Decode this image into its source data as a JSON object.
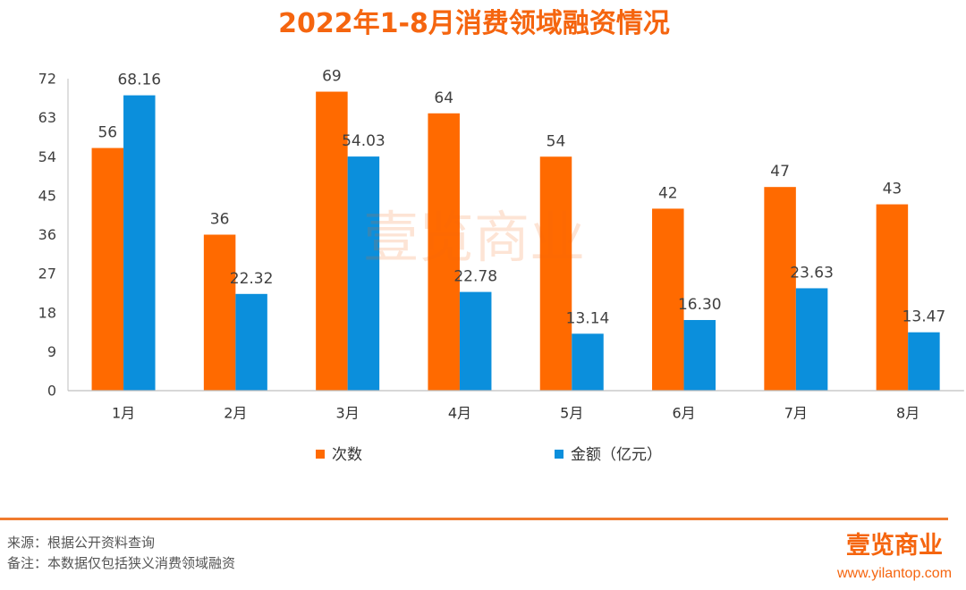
{
  "colors": {
    "accent": "#f5650f",
    "footer_rule": "#f07b2e",
    "axis": "#bfbfbf",
    "text": "#333333"
  },
  "chart_data": {
    "type": "bar",
    "title": "2022年1-8月消费领域融资情况",
    "categories": [
      "1月",
      "2月",
      "3月",
      "4月",
      "5月",
      "6月",
      "7月",
      "8月"
    ],
    "series": [
      {
        "name": "次数",
        "color": "#ff6a00",
        "values": [
          56,
          36,
          69,
          64,
          54,
          42,
          47,
          43
        ],
        "labels": [
          "56",
          "36",
          "69",
          "64",
          "54",
          "42",
          "47",
          "43"
        ]
      },
      {
        "name": "金额（亿元）",
        "color": "#0b8fdc",
        "values": [
          68.16,
          22.32,
          54.03,
          22.78,
          13.14,
          16.3,
          23.63,
          13.47
        ],
        "labels": [
          "68.16",
          "22.32",
          "54.03",
          "22.78",
          "13.14",
          "16.30",
          "23.63",
          "13.47"
        ]
      }
    ],
    "ylim": [
      0,
      72
    ],
    "yticks": [
      0,
      9,
      18,
      27,
      36,
      45,
      54,
      63,
      72
    ],
    "grid": false,
    "legend": "bottom-center"
  },
  "watermark": "壹览商业",
  "footer": {
    "source": "来源：根据公开资料查询",
    "note": "备注：本数据仅包括狭义消费领域融资",
    "brand": "壹览商业",
    "url": "www.yilantop.com"
  }
}
